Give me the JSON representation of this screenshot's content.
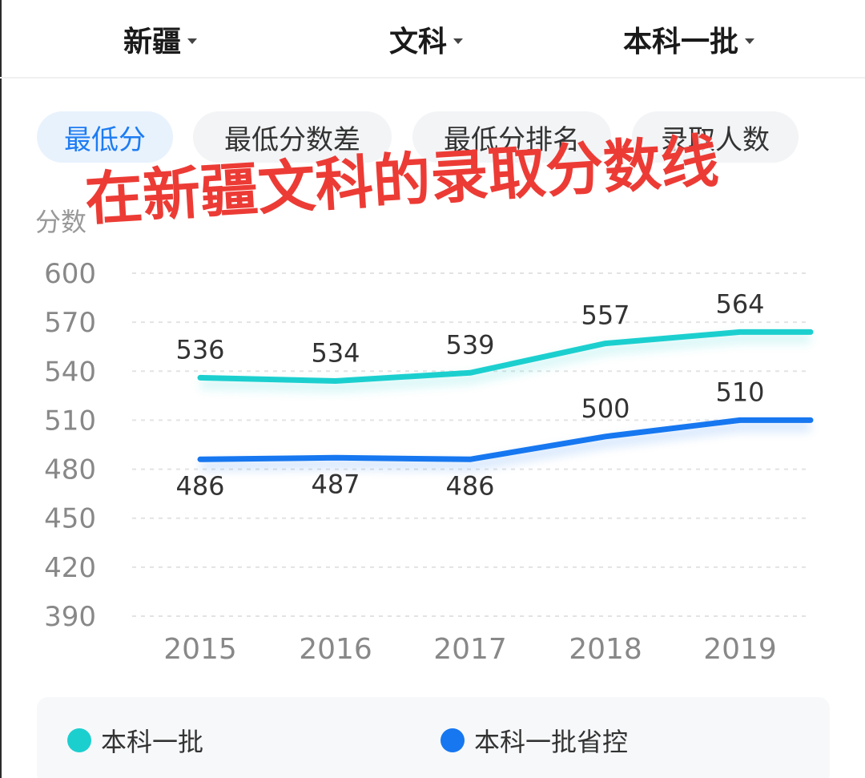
{
  "filters": [
    {
      "label": "新疆"
    },
    {
      "label": "文科"
    },
    {
      "label": "本科一批"
    }
  ],
  "tabs": [
    {
      "label": "最低分",
      "active": true
    },
    {
      "label": "最低分数差",
      "active": false
    },
    {
      "label": "最低分排名",
      "active": false
    },
    {
      "label": "录取人数",
      "active": false
    }
  ],
  "overlay_text": "在新疆文科的录取分数线",
  "colors": {
    "accent": "#1d7cf2",
    "series1": "#1ccfcf",
    "series2": "#1677f0",
    "overlay": "#ec3b35"
  },
  "chart_data": {
    "type": "line",
    "title": "",
    "xlabel": "",
    "ylabel": "分数",
    "categories": [
      "2015",
      "2016",
      "2017",
      "2018",
      "2019"
    ],
    "yticks": [
      390,
      420,
      450,
      480,
      510,
      540,
      570,
      600
    ],
    "ylim": [
      390,
      600
    ],
    "grid": true,
    "legend": "bottom",
    "series": [
      {
        "name": "本科一批",
        "color": "#1ccfcf",
        "values": [
          536,
          534,
          539,
          557,
          564
        ]
      },
      {
        "name": "本科一批省控",
        "color": "#1677f0",
        "values": [
          486,
          487,
          486,
          500,
          510
        ]
      }
    ]
  }
}
